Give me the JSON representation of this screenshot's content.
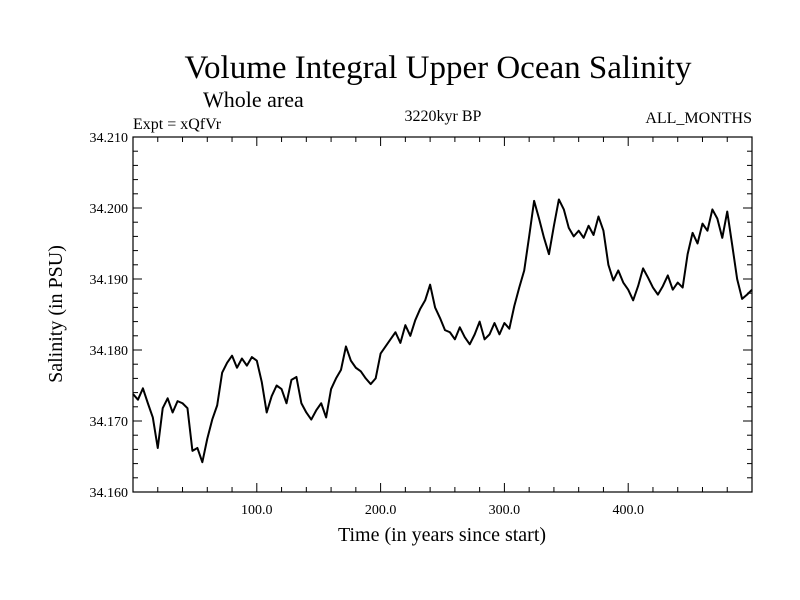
{
  "chart_data": {
    "type": "line",
    "title": "Volume Integral Upper Ocean Salinity",
    "subtitle": "Whole area",
    "info_left": "Expt = xQfVr",
    "info_center": "3220kyr BP",
    "info_right": "ALL_MONTHS",
    "xlabel": "Time (in years since start)",
    "ylabel": "Salinity (in PSU)",
    "xlim": [
      0,
      500
    ],
    "ylim": [
      34.16,
      34.21
    ],
    "xticks": [
      {
        "value": 100,
        "label": "100.0"
      },
      {
        "value": 200,
        "label": "200.0"
      },
      {
        "value": 300,
        "label": "300.0"
      },
      {
        "value": 400,
        "label": "400.0"
      }
    ],
    "yticks": [
      {
        "value": 34.16,
        "label": "34.160"
      },
      {
        "value": 34.17,
        "label": "34.170"
      },
      {
        "value": 34.18,
        "label": "34.180"
      },
      {
        "value": 34.19,
        "label": "34.190"
      },
      {
        "value": 34.2,
        "label": "34.200"
      },
      {
        "value": 34.21,
        "label": "34.210"
      }
    ],
    "series": [
      {
        "name": "salinity",
        "x": [
          0,
          4,
          8,
          12,
          16,
          20,
          24,
          28,
          32,
          36,
          40,
          44,
          48,
          52,
          56,
          60,
          64,
          68,
          72,
          76,
          80,
          84,
          88,
          92,
          96,
          100,
          104,
          108,
          112,
          116,
          120,
          124,
          128,
          132,
          136,
          140,
          144,
          148,
          152,
          156,
          160,
          164,
          168,
          172,
          176,
          180,
          184,
          188,
          192,
          196,
          200,
          204,
          208,
          212,
          216,
          220,
          224,
          228,
          232,
          236,
          240,
          244,
          248,
          252,
          256,
          260,
          264,
          268,
          272,
          276,
          280,
          284,
          288,
          292,
          296,
          300,
          304,
          308,
          312,
          316,
          320,
          324,
          328,
          332,
          336,
          340,
          344,
          348,
          352,
          356,
          360,
          364,
          368,
          372,
          376,
          380,
          384,
          388,
          392,
          396,
          400,
          404,
          408,
          412,
          416,
          420,
          424,
          428,
          432,
          436,
          440,
          444,
          448,
          452,
          456,
          460,
          464,
          468,
          472,
          476,
          480,
          484,
          488,
          492,
          496,
          500
        ],
        "y": [
          34.1738,
          34.173,
          34.1746,
          34.1725,
          34.1705,
          34.1662,
          34.1718,
          34.1732,
          34.1712,
          34.1728,
          34.1725,
          34.1718,
          34.1658,
          34.1662,
          34.1642,
          34.1675,
          34.1702,
          34.1722,
          34.1768,
          34.1782,
          34.1792,
          34.1775,
          34.1788,
          34.1778,
          34.179,
          34.1785,
          34.1755,
          34.1712,
          34.1735,
          34.175,
          34.1745,
          34.1725,
          34.1758,
          34.1762,
          34.1725,
          34.1712,
          34.1702,
          34.1715,
          34.1725,
          34.1705,
          34.1745,
          34.176,
          34.1772,
          34.1805,
          34.1785,
          34.1775,
          34.177,
          34.176,
          34.1752,
          34.176,
          34.1795,
          34.1805,
          34.1815,
          34.1825,
          34.181,
          34.1835,
          34.182,
          34.1842,
          34.1858,
          34.187,
          34.1892,
          34.186,
          34.1845,
          34.1828,
          34.1825,
          34.1815,
          34.1832,
          34.1818,
          34.1808,
          34.1822,
          34.184,
          34.1815,
          34.1822,
          34.1838,
          34.1822,
          34.1838,
          34.183,
          34.1862,
          34.1888,
          34.1912,
          34.196,
          34.201,
          34.1985,
          34.1958,
          34.1935,
          34.1975,
          34.2012,
          34.1998,
          34.1972,
          34.196,
          34.1968,
          34.1958,
          34.1975,
          34.1962,
          34.1988,
          34.1968,
          34.192,
          34.1898,
          34.1912,
          34.1895,
          34.1885,
          34.187,
          34.189,
          34.1915,
          34.1902,
          34.1888,
          34.1878,
          34.189,
          34.1905,
          34.1885,
          34.1895,
          34.1888,
          34.1935,
          34.1965,
          34.195,
          34.1978,
          34.1968,
          34.1998,
          34.1985,
          34.1958,
          34.1995,
          34.1948,
          34.19,
          34.1872,
          34.1878,
          34.1885
        ]
      }
    ]
  }
}
